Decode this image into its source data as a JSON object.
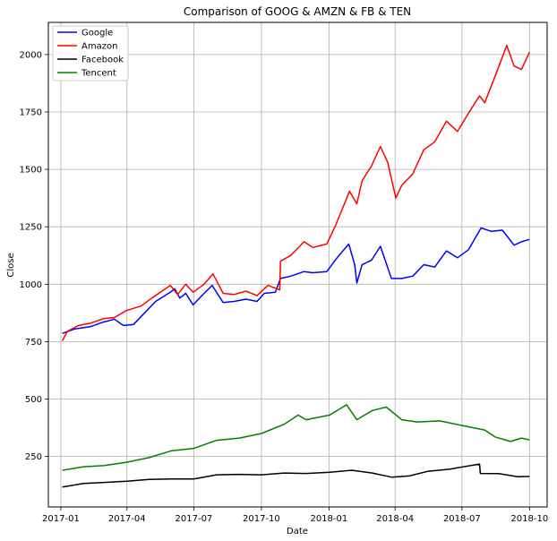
{
  "chart_data": {
    "type": "line",
    "title": "Comparison of GOOG & AMZN & FB & TEN",
    "xlabel": "Date",
    "ylabel": "Close",
    "xlim": [
      "2016-12-15",
      "2018-10-25"
    ],
    "ylim": [
      30,
      2140
    ],
    "x_ticks": [
      "2017-01",
      "2017-04",
      "2017-07",
      "2017-10",
      "2018-01",
      "2018-04",
      "2018-07",
      "2018-10"
    ],
    "y_ticks": [
      250,
      500,
      750,
      1000,
      1250,
      1500,
      1750,
      2000
    ],
    "grid": true,
    "legend_position": "top-left",
    "series": [
      {
        "name": "Google",
        "color": "#0000ff",
        "points": [
          [
            "2017-01-03",
            786
          ],
          [
            "2017-01-20",
            805
          ],
          [
            "2017-02-10",
            815
          ],
          [
            "2017-02-28",
            835
          ],
          [
            "2017-03-15",
            848
          ],
          [
            "2017-03-27",
            820
          ],
          [
            "2017-04-10",
            825
          ],
          [
            "2017-04-25",
            875
          ],
          [
            "2017-05-10",
            925
          ],
          [
            "2017-05-30",
            965
          ],
          [
            "2017-06-05",
            980
          ],
          [
            "2017-06-12",
            940
          ],
          [
            "2017-06-20",
            960
          ],
          [
            "2017-06-30",
            910
          ],
          [
            "2017-07-15",
            960
          ],
          [
            "2017-07-26",
            995
          ],
          [
            "2017-08-10",
            920
          ],
          [
            "2017-08-25",
            925
          ],
          [
            "2017-09-10",
            935
          ],
          [
            "2017-09-25",
            925
          ],
          [
            "2017-10-05",
            960
          ],
          [
            "2017-10-20",
            965
          ],
          [
            "2017-10-27",
            1025
          ],
          [
            "2017-11-10",
            1035
          ],
          [
            "2017-11-28",
            1055
          ],
          [
            "2017-12-10",
            1050
          ],
          [
            "2017-12-29",
            1055
          ],
          [
            "2018-01-12",
            1115
          ],
          [
            "2018-01-28",
            1175
          ],
          [
            "2018-02-05",
            1085
          ],
          [
            "2018-02-08",
            1005
          ],
          [
            "2018-02-15",
            1085
          ],
          [
            "2018-02-28",
            1105
          ],
          [
            "2018-03-12",
            1165
          ],
          [
            "2018-03-27",
            1025
          ],
          [
            "2018-04-10",
            1025
          ],
          [
            "2018-04-25",
            1035
          ],
          [
            "2018-05-10",
            1085
          ],
          [
            "2018-05-25",
            1075
          ],
          [
            "2018-06-10",
            1145
          ],
          [
            "2018-06-25",
            1115
          ],
          [
            "2018-07-10",
            1150
          ],
          [
            "2018-07-27",
            1245
          ],
          [
            "2018-08-10",
            1230
          ],
          [
            "2018-08-25",
            1235
          ],
          [
            "2018-09-10",
            1170
          ],
          [
            "2018-09-20",
            1185
          ],
          [
            "2018-10-01",
            1195
          ]
        ]
      },
      {
        "name": "Amazon",
        "color": "#ff0000",
        "points": [
          [
            "2017-01-03",
            754
          ],
          [
            "2017-01-10",
            795
          ],
          [
            "2017-01-25",
            820
          ],
          [
            "2017-02-10",
            830
          ],
          [
            "2017-02-28",
            850
          ],
          [
            "2017-03-15",
            855
          ],
          [
            "2017-03-31",
            885
          ],
          [
            "2017-04-20",
            905
          ],
          [
            "2017-05-05",
            940
          ],
          [
            "2017-05-30",
            995
          ],
          [
            "2017-06-09",
            955
          ],
          [
            "2017-06-20",
            1000
          ],
          [
            "2017-06-30",
            965
          ],
          [
            "2017-07-15",
            1000
          ],
          [
            "2017-07-27",
            1045
          ],
          [
            "2017-08-10",
            960
          ],
          [
            "2017-08-25",
            955
          ],
          [
            "2017-09-10",
            970
          ],
          [
            "2017-09-25",
            950
          ],
          [
            "2017-10-10",
            995
          ],
          [
            "2017-10-26",
            975
          ],
          [
            "2017-10-27",
            1100
          ],
          [
            "2017-11-10",
            1125
          ],
          [
            "2017-11-28",
            1185
          ],
          [
            "2017-12-10",
            1160
          ],
          [
            "2017-12-29",
            1175
          ],
          [
            "2018-01-10",
            1255
          ],
          [
            "2018-01-29",
            1405
          ],
          [
            "2018-02-08",
            1350
          ],
          [
            "2018-02-15",
            1450
          ],
          [
            "2018-02-28",
            1515
          ],
          [
            "2018-03-12",
            1600
          ],
          [
            "2018-03-22",
            1530
          ],
          [
            "2018-04-02",
            1375
          ],
          [
            "2018-04-10",
            1430
          ],
          [
            "2018-04-25",
            1480
          ],
          [
            "2018-05-10",
            1585
          ],
          [
            "2018-05-25",
            1620
          ],
          [
            "2018-06-10",
            1710
          ],
          [
            "2018-06-25",
            1665
          ],
          [
            "2018-07-10",
            1745
          ],
          [
            "2018-07-25",
            1820
          ],
          [
            "2018-08-01",
            1790
          ],
          [
            "2018-08-15",
            1905
          ],
          [
            "2018-08-31",
            2040
          ],
          [
            "2018-09-10",
            1950
          ],
          [
            "2018-09-20",
            1935
          ],
          [
            "2018-10-01",
            2010
          ]
        ]
      },
      {
        "name": "Facebook",
        "color": "#000000",
        "points": [
          [
            "2017-01-03",
            117
          ],
          [
            "2017-02-01",
            132
          ],
          [
            "2017-03-01",
            137
          ],
          [
            "2017-04-01",
            142
          ],
          [
            "2017-05-01",
            150
          ],
          [
            "2017-06-01",
            152
          ],
          [
            "2017-07-01",
            152
          ],
          [
            "2017-08-01",
            170
          ],
          [
            "2017-09-01",
            172
          ],
          [
            "2017-10-01",
            170
          ],
          [
            "2017-11-01",
            178
          ],
          [
            "2017-12-01",
            176
          ],
          [
            "2018-01-02",
            181
          ],
          [
            "2018-02-01",
            190
          ],
          [
            "2018-03-01",
            178
          ],
          [
            "2018-03-27",
            160
          ],
          [
            "2018-04-20",
            165
          ],
          [
            "2018-05-15",
            185
          ],
          [
            "2018-06-15",
            195
          ],
          [
            "2018-07-25",
            217
          ],
          [
            "2018-07-26",
            176
          ],
          [
            "2018-08-20",
            175
          ],
          [
            "2018-09-15",
            162
          ],
          [
            "2018-10-01",
            163
          ]
        ]
      },
      {
        "name": "Tencent",
        "color": "#008000",
        "points": [
          [
            "2017-01-03",
            190
          ],
          [
            "2017-02-01",
            205
          ],
          [
            "2017-03-01",
            210
          ],
          [
            "2017-04-01",
            225
          ],
          [
            "2017-05-01",
            245
          ],
          [
            "2017-06-01",
            275
          ],
          [
            "2017-07-01",
            285
          ],
          [
            "2017-08-01",
            320
          ],
          [
            "2017-09-01",
            330
          ],
          [
            "2017-10-01",
            350
          ],
          [
            "2017-11-01",
            390
          ],
          [
            "2017-11-20",
            430
          ],
          [
            "2017-12-01",
            410
          ],
          [
            "2018-01-02",
            430
          ],
          [
            "2018-01-25",
            475
          ],
          [
            "2018-02-08",
            410
          ],
          [
            "2018-03-01",
            450
          ],
          [
            "2018-03-20",
            465
          ],
          [
            "2018-04-10",
            410
          ],
          [
            "2018-05-01",
            400
          ],
          [
            "2018-06-01",
            405
          ],
          [
            "2018-07-01",
            385
          ],
          [
            "2018-08-01",
            365
          ],
          [
            "2018-08-15",
            335
          ],
          [
            "2018-09-05",
            315
          ],
          [
            "2018-09-20",
            330
          ],
          [
            "2018-10-01",
            322
          ]
        ]
      }
    ]
  }
}
